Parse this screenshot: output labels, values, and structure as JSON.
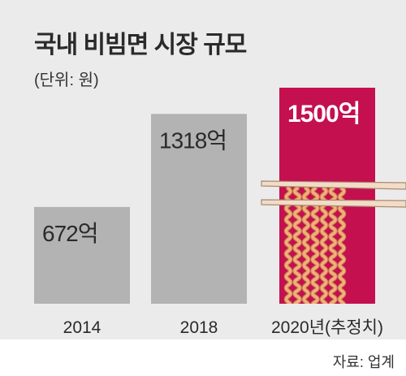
{
  "title": "국내 비빔면 시장 규모",
  "unit_note": "(단위: 원)",
  "source": "자료: 업계",
  "colors": {
    "background": "#ebebeb",
    "bar_gray": "#b3b3b3",
    "bar_highlight": "#c4104f",
    "noodle": "#f3b07a",
    "chopsticks": "#f2dcc8"
  },
  "chart_data": {
    "type": "bar",
    "categories": [
      "2014",
      "2018",
      "2020년(추정치)"
    ],
    "values": [
      672,
      1318,
      1500
    ],
    "value_labels": [
      "672억",
      "1318억",
      "1500억"
    ],
    "highlight_index": 2,
    "ylim": [
      0,
      1500
    ],
    "grid": false,
    "legend": "none"
  },
  "decoration": {
    "icon": "chopsticks-noodles-icon"
  }
}
